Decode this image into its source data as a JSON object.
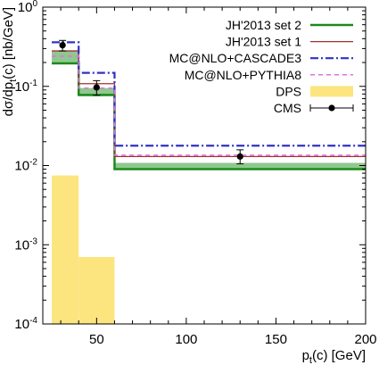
{
  "chart_data": {
    "type": "step-histogram",
    "xlabel": "p",
    "xlabel_sub": "t",
    "xlabel_rest": "(c) [GeV]",
    "ylabel": "dσ/dp",
    "ylabel_sub": "t",
    "ylabel_rest": "(c) [nb/GeV]",
    "xlim": [
      20,
      200
    ],
    "ylim": [
      0.0001,
      1
    ],
    "yscale": "log",
    "legend_position": "top-right",
    "x_ticks": [
      {
        "value": 50,
        "label": "50"
      },
      {
        "value": 100,
        "label": "100"
      },
      {
        "value": 150,
        "label": "150"
      },
      {
        "value": 200,
        "label": "200"
      }
    ],
    "y_ticks": [
      {
        "value": 1,
        "base": "10",
        "exp": "0"
      },
      {
        "value": 0.1,
        "base": "10",
        "exp": "-1"
      },
      {
        "value": 0.01,
        "base": "10",
        "exp": "-2"
      },
      {
        "value": 0.001,
        "base": "10",
        "exp": "-3"
      },
      {
        "value": 0.0001,
        "base": "10",
        "exp": "-4"
      }
    ],
    "bin_edges": [
      25,
      40,
      60,
      200
    ],
    "bands": [
      {
        "name": "DPS",
        "color": "#fce57f",
        "low": [
          0.0001,
          0.0001,
          0.0001
        ],
        "high": [
          0.0075,
          0.0007,
          0.0001
        ]
      },
      {
        "name": "JH'2013 set 2 band",
        "color": "#8fc88f",
        "low": [
          0.2,
          0.075,
          0.0088
        ],
        "high": [
          0.28,
          0.095,
          0.0108
        ]
      }
    ],
    "series": [
      {
        "name": "JH'2013 set 2",
        "color": "#1a8a1a",
        "dash": "",
        "width": 2.5,
        "values": [
          0.195,
          0.078,
          0.009
        ]
      },
      {
        "name": "JH'2013 set 1",
        "color": "#a03030",
        "dash": "",
        "width": 1.3,
        "values": [
          0.28,
          0.108,
          0.013
        ]
      },
      {
        "name": "MC@NLO+CASCADE3",
        "color": "#3030c8",
        "dash": "9,3,2,3",
        "width": 2.2,
        "values": [
          0.36,
          0.148,
          0.0178
        ]
      },
      {
        "name": "MC@NLO+PYTHIA8",
        "color": "#e070e0",
        "dash": "5,4",
        "width": 1.5,
        "values": [
          0.24,
          0.095,
          0.0135
        ]
      }
    ],
    "points": {
      "name": "CMS",
      "x": [
        31,
        50,
        130
      ],
      "y": [
        0.33,
        0.097,
        0.013
      ],
      "err_low": [
        0.28,
        0.077,
        0.0105
      ],
      "err_high": [
        0.38,
        0.118,
        0.0158
      ]
    },
    "legend_entries": [
      {
        "label": "JH'2013 set 2",
        "kind": "line",
        "color": "#1a8a1a",
        "dash": "",
        "width": 2.5
      },
      {
        "label": "JH'2013 set 1",
        "kind": "line",
        "color": "#a03030",
        "dash": "",
        "width": 1.3
      },
      {
        "label": "MC@NLO+CASCADE3",
        "kind": "line",
        "color": "#3030c8",
        "dash": "9,3,2,3",
        "width": 2.2
      },
      {
        "label": "MC@NLO+PYTHIA8",
        "kind": "line",
        "color": "#e070e0",
        "dash": "5,4",
        "width": 1.5
      },
      {
        "label": "DPS",
        "kind": "box",
        "color": "#fce57f"
      },
      {
        "label": "CMS",
        "kind": "point",
        "color": "#000000"
      }
    ]
  }
}
